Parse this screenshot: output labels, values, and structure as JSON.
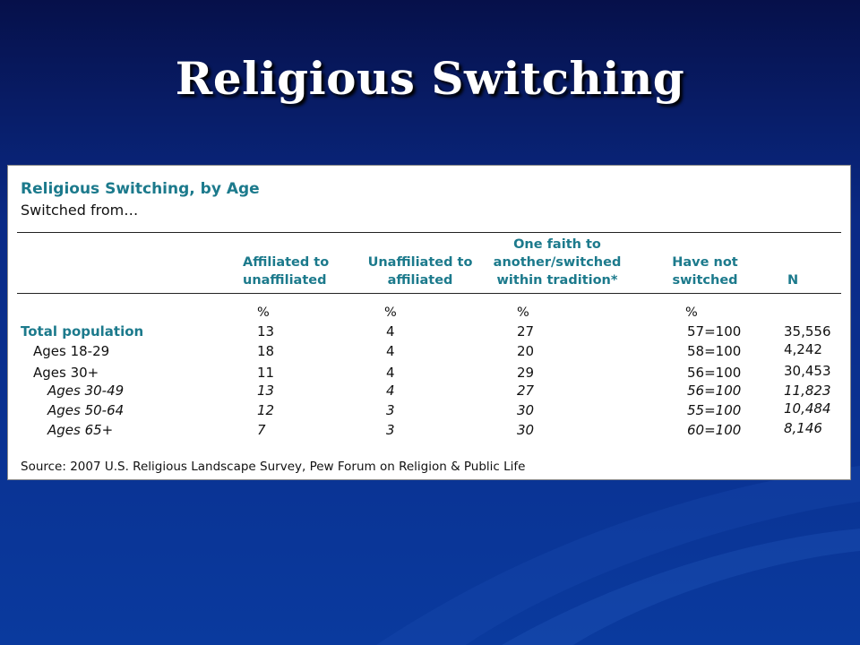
{
  "slide": {
    "title": "Religious Switching"
  },
  "table": {
    "title": "Religious Switching, by Age",
    "subtitle": "Switched from…",
    "headers": [
      {
        "lines": [
          "Affiliated to",
          "unaffiliated"
        ]
      },
      {
        "lines": [
          "Unaffiliated to",
          "affiliated"
        ]
      },
      {
        "lines": [
          "One faith to",
          "another/switched",
          "within tradition*"
        ]
      },
      {
        "lines": [
          "Have not",
          "switched"
        ]
      },
      {
        "lines": [
          "N"
        ]
      }
    ],
    "percent_row": [
      "%",
      "%",
      "%",
      "%"
    ],
    "rows": [
      {
        "label": "Total population",
        "values": [
          "13",
          "4",
          "27",
          "57=100",
          "35,556"
        ]
      },
      {
        "label": "Ages 18-29",
        "values": [
          "18",
          "4",
          "20",
          "58=100",
          "4,242"
        ]
      },
      {
        "label": "Ages 30+",
        "values": [
          "11",
          "4",
          "29",
          "56=100",
          "30,453"
        ]
      },
      {
        "label": "Ages 30-49",
        "values": [
          "13",
          "4",
          "27",
          "56=100",
          "11,823"
        ]
      },
      {
        "label": "Ages 50-64",
        "values": [
          "12",
          "3",
          "30",
          "55=100",
          "10,484"
        ]
      },
      {
        "label": "Ages 65+",
        "values": [
          "7",
          "3",
          "30",
          "60=100",
          "8,146"
        ]
      }
    ],
    "source": "Source: 2007 U.S. Religious Landscape Survey, Pew Forum on Religion & Public Life"
  }
}
